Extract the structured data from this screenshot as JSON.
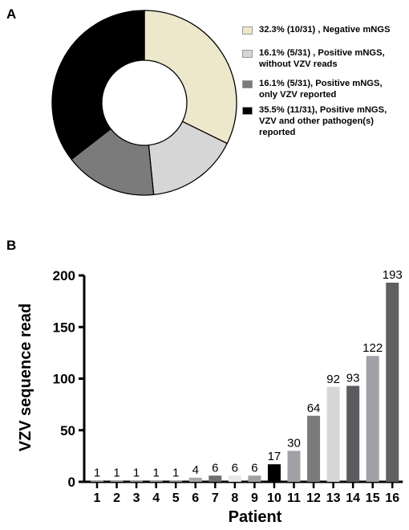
{
  "panel_a_label": "A",
  "panel_b_label": "B",
  "chart_data": [
    {
      "type": "pie",
      "donut": true,
      "slices": [
        {
          "label": "32.3% (10/31) , Negative mNGS",
          "value": 10,
          "color": "#ede8cc"
        },
        {
          "label": "16.1% (5/31) ,   Positive mNGS,\nwithout VZV reads",
          "value": 5,
          "color": "#d6d6d6"
        },
        {
          "label": "16.1% (5/31),    Positive mNGS,\nonly VZV reported",
          "value": 5,
          "color": "#7b7b7b"
        },
        {
          "label": "35.5% (11/31),   Positive mNGS,\nVZV and other pathogen(s)\nreported",
          "value": 11,
          "color": "#000000"
        }
      ]
    },
    {
      "type": "bar",
      "xlabel": "Patient",
      "ylabel": "VZV sequence read",
      "ylim": [
        0,
        200
      ],
      "yticks": [
        0,
        50,
        100,
        150,
        200
      ],
      "categories": [
        "1",
        "2",
        "3",
        "4",
        "5",
        "6",
        "7",
        "8",
        "9",
        "10",
        "11",
        "12",
        "13",
        "14",
        "15",
        "16"
      ],
      "values": [
        1,
        1,
        1,
        1,
        1,
        4,
        6,
        6,
        6,
        17,
        30,
        64,
        92,
        93,
        122,
        193
      ],
      "data_labels": [
        "1",
        "1",
        "1",
        "1",
        "1",
        "4",
        "6",
        "6",
        "6",
        "17",
        "30",
        "64",
        "92",
        "93",
        "122",
        "193"
      ],
      "colors": [
        "#9e9ea4",
        "#9e9ea4",
        "#9e9ea4",
        "#9e9ea4",
        "#9e9ea4",
        "#a8a8ac",
        "#6e6e6e",
        "#e8e8e8",
        "#a0a0a6",
        "#000000",
        "#a0a0a6",
        "#7b7b7b",
        "#d6d6d6",
        "#5c5c60",
        "#a0a0a6",
        "#606060"
      ]
    }
  ]
}
